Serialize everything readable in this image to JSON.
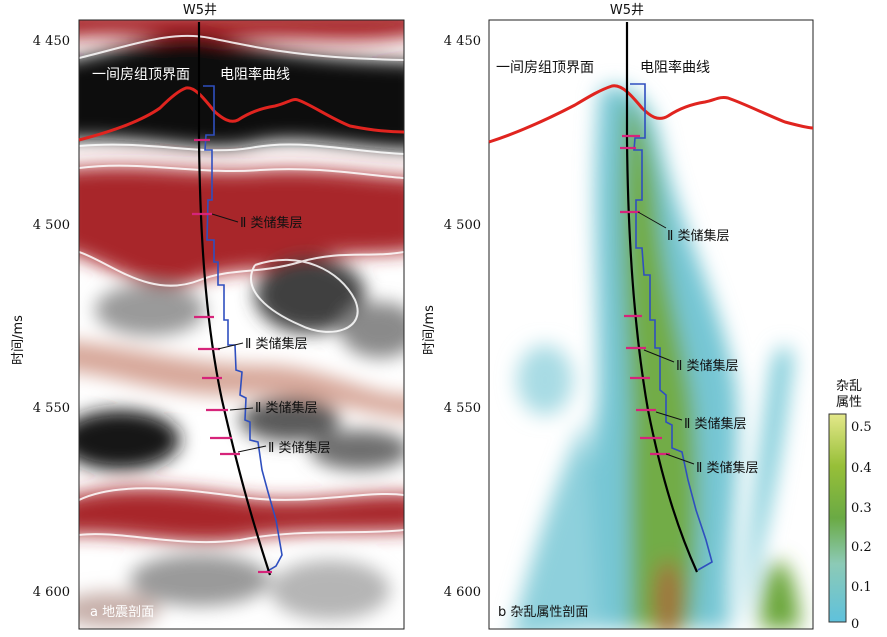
{
  "panel_a": {
    "well": "W5井",
    "horizon": "一间房组顶界面",
    "curve": "电阻率曲线",
    "caption": "a 地震剖面",
    "reservoir_labels": [
      "Ⅱ 类储集层",
      "Ⅱ 类储集层",
      "Ⅱ 类储集层",
      "Ⅱ 类储集层"
    ]
  },
  "panel_b": {
    "well": "W5井",
    "horizon": "一间房组顶界面",
    "curve": "电阻率曲线",
    "caption": "b 杂乱属性剖面",
    "reservoir_labels": [
      "Ⅱ 类储集层",
      "Ⅱ 类储集层",
      "Ⅱ 类储集层",
      "Ⅱ 类储集层"
    ]
  },
  "y_axis": {
    "label": "时间/ms",
    "ticks": [
      "4 450",
      "4 500",
      "4 550",
      "4 600"
    ]
  },
  "colorbar": {
    "title_line1": "杂乱",
    "title_line2": "属性",
    "ticks": [
      "0.5",
      "0.4",
      "0.3",
      "0.2",
      "0.1",
      "0"
    ]
  },
  "colors": {
    "horizon": "#e0241f",
    "resistivity": "#2f4fbf",
    "well": "#000000",
    "seismic_red": "#a8282b",
    "attr_cyan": "#72c6d6",
    "attr_green": "#6aa63a"
  }
}
